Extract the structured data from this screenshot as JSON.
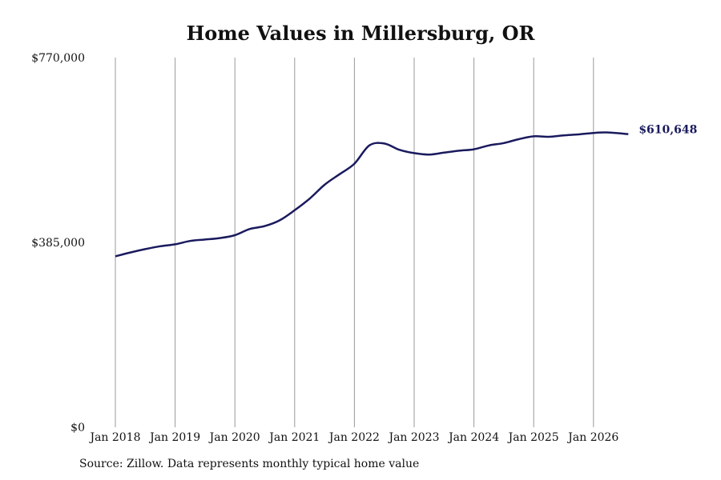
{
  "chart_data": {
    "type": "line",
    "title": "Home Values in Millersburg, OR",
    "xlabel": "",
    "ylabel": "",
    "x_tick_labels": [
      "Jan 2018",
      "Jan 2019",
      "Jan 2020",
      "Jan 2021",
      "Jan 2022",
      "Jan 2023",
      "Jan 2024",
      "Jan 2025",
      "Jan 2026"
    ],
    "y_tick_labels": [
      "$0",
      "$385,000",
      "$770,000"
    ],
    "y_ticks": [
      0,
      385000,
      770000
    ],
    "ylim": [
      0,
      770000
    ],
    "xlim": [
      "2018-01",
      "2026-08"
    ],
    "grid": "vertical",
    "color": "#1a1a5e",
    "end_label": "$610,648",
    "series": [
      {
        "x": [
          "2018-01",
          "2018-04",
          "2018-07",
          "2018-10",
          "2019-01",
          "2019-04",
          "2019-07",
          "2019-10",
          "2020-01",
          "2020-04",
          "2020-07",
          "2020-10",
          "2021-01",
          "2021-04",
          "2021-07",
          "2021-10",
          "2022-01",
          "2022-04",
          "2022-07",
          "2022-10",
          "2023-01",
          "2023-04",
          "2023-07",
          "2023-10",
          "2024-01",
          "2024-04",
          "2024-07",
          "2024-10",
          "2025-01",
          "2025-04",
          "2025-07",
          "2025-10",
          "2026-01",
          "2026-04",
          "2026-08"
        ],
        "y": [
          356000,
          364000,
          371000,
          377000,
          381000,
          388000,
          391000,
          394000,
          400000,
          413000,
          419000,
          431000,
          452000,
          476000,
          505000,
          527000,
          549000,
          587000,
          591000,
          578000,
          571000,
          568000,
          572000,
          576000,
          579000,
          587000,
          592000,
          600000,
          606000,
          605000,
          608000,
          610000,
          613000,
          614000,
          610648
        ]
      }
    ]
  },
  "source_text": "Source: Zillow. Data represents monthly typical home value"
}
